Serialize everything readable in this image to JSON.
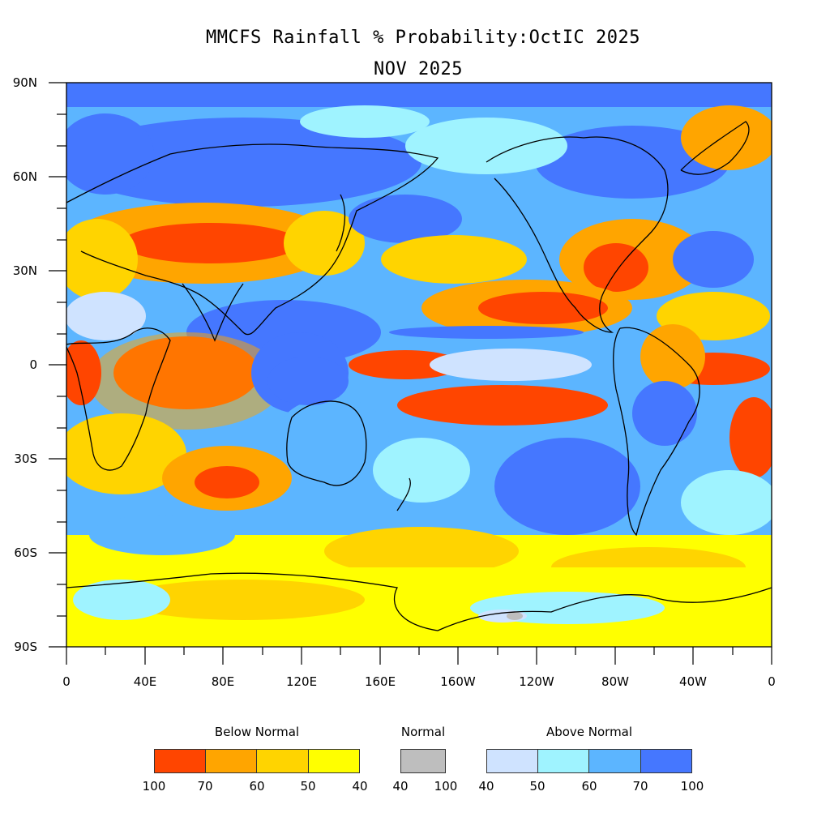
{
  "title": "MMCFS Rainfall % Probability:OctIC 2025",
  "subtitle": "NOV 2025",
  "y_ticks": [
    "90N",
    "60N",
    "30N",
    "0",
    "30S",
    "60S",
    "90S"
  ],
  "x_ticks": [
    "0",
    "40E",
    "80E",
    "120E",
    "160E",
    "160W",
    "120W",
    "80W",
    "40W",
    "0"
  ],
  "legend": {
    "below": {
      "label": "Below Normal",
      "colors": [
        "#ff4500",
        "#ffa500",
        "#ffd400",
        "#ffff00"
      ],
      "values": [
        "100",
        "70",
        "60",
        "50",
        "40"
      ]
    },
    "normal": {
      "label": "Normal",
      "colors": [
        "#bebebe"
      ],
      "values": [
        "40",
        "100"
      ]
    },
    "above": {
      "label": "Above Normal",
      "colors": [
        "#cfe3ff",
        "#9ff3ff",
        "#5cb5ff",
        "#4577ff"
      ],
      "values": [
        "40",
        "50",
        "60",
        "70",
        "100"
      ]
    }
  },
  "colors": {
    "deep_blue": "#4577ff",
    "mid_blue": "#5cb5ff",
    "cyan": "#9ff3ff",
    "pale_blue": "#cfe3ff",
    "red": "#ff4500",
    "orange": "#ffa500",
    "gold": "#ffd400",
    "yellow": "#ffff00",
    "gray": "#bebebe"
  }
}
